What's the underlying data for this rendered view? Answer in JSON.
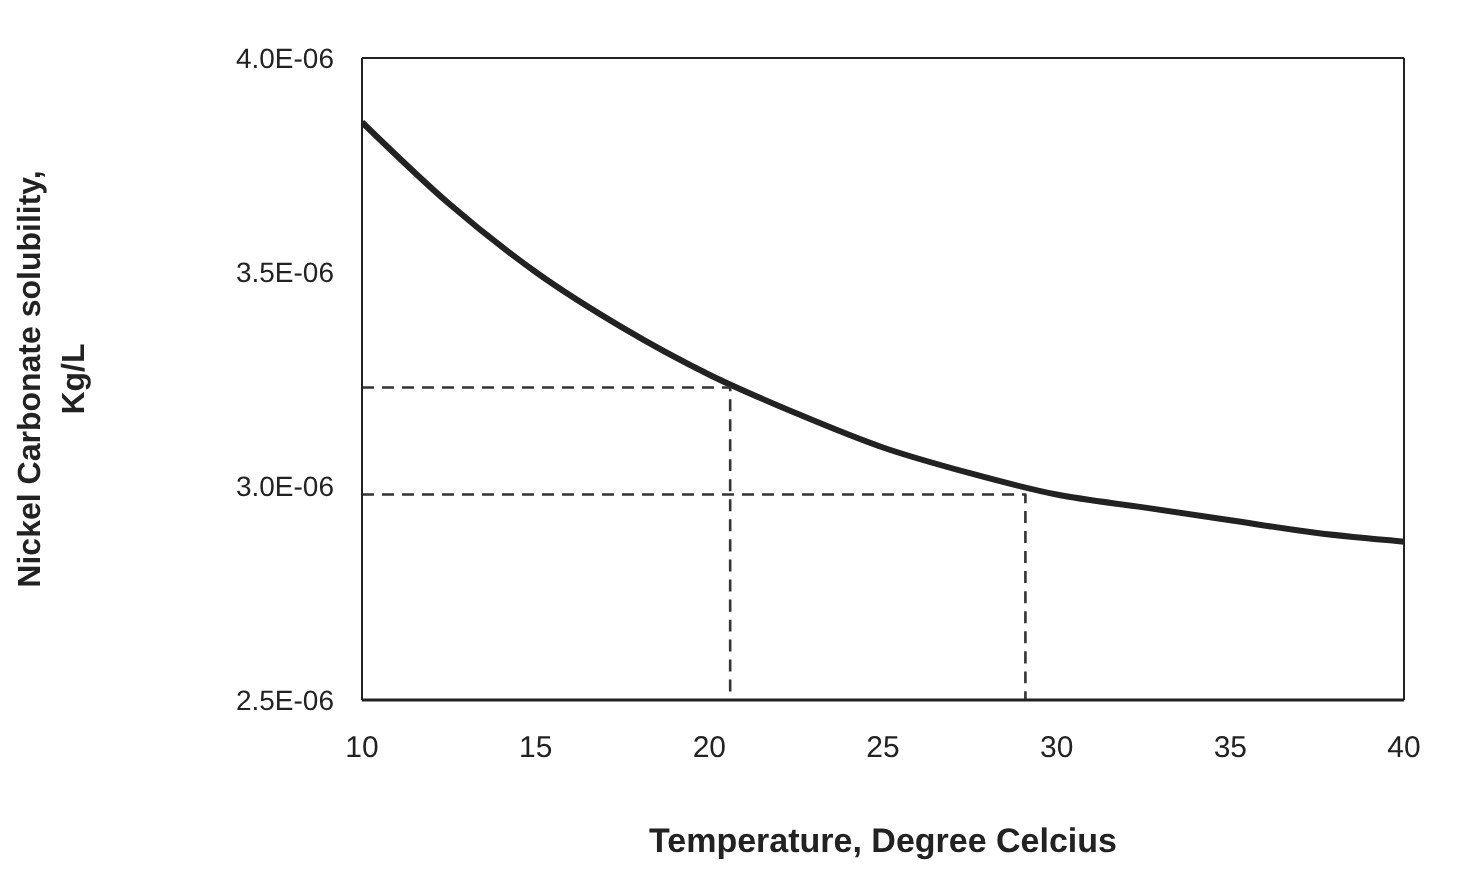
{
  "chart_data": {
    "type": "line",
    "xlabel": "Temperature, Degree Celcius",
    "ylabel": "Nickel Carbonate solubility,\nKg/L",
    "xlim": [
      10,
      40
    ],
    "xticks": [
      10,
      15,
      20,
      25,
      30,
      35,
      40
    ],
    "ylim": [
      2.5e-06,
      4e-06
    ],
    "yticks": [
      {
        "value": 2.5e-06,
        "label": "2.5E-06"
      },
      {
        "value": 3e-06,
        "label": "3.0E-06"
      },
      {
        "value": 3.5e-06,
        "label": "3.5E-06"
      },
      {
        "value": 4e-06,
        "label": "4.0E-06"
      }
    ],
    "grid": false,
    "marker": "none",
    "series": [
      {
        "color": "#222222",
        "line_style": "solid",
        "x": [
          10,
          12.5,
          15,
          17.5,
          20,
          22.5,
          25,
          27.5,
          30,
          32.5,
          35,
          37.5,
          40
        ],
        "values": [
          3.85e-06,
          3.66e-06,
          3.5e-06,
          3.37e-06,
          3.26e-06,
          3.17e-06,
          3.09e-06,
          3.03e-06,
          2.98e-06,
          2.95e-06,
          2.92e-06,
          2.89e-06,
          2.87e-06
        ]
      },
      {
        "color": "#333333",
        "line_style": "dashed",
        "x": [
          10,
          20.6,
          20.6
        ],
        "values": [
          3.23e-06,
          3.23e-06,
          2.5e-06
        ]
      },
      {
        "color": "#333333",
        "line_style": "dashed",
        "x": [
          10,
          29.1,
          29.1
        ],
        "values": [
          2.98e-06,
          2.98e-06,
          2.5e-06
        ]
      }
    ]
  }
}
